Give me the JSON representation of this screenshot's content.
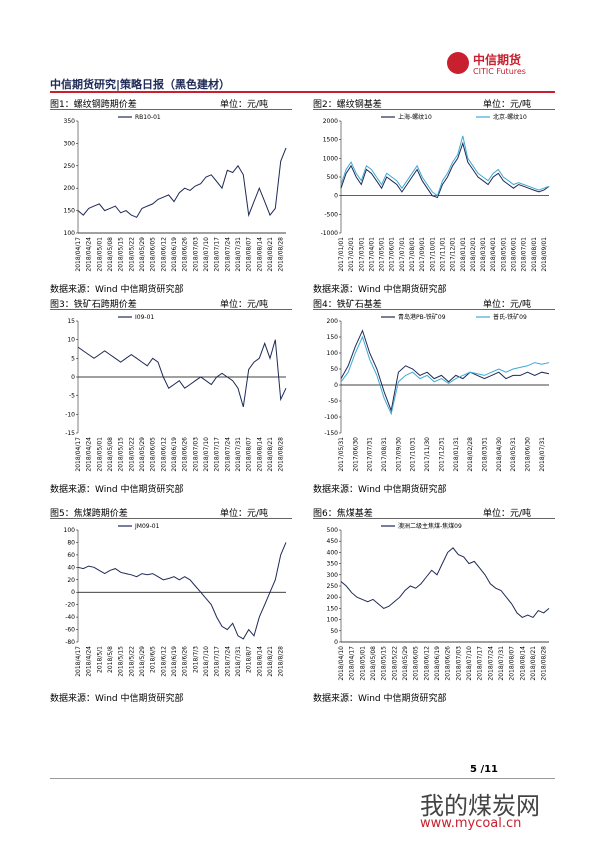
{
  "header": {
    "title": "中信期货研究|策略日报（黑色建材）",
    "logo_cn": "中信期货",
    "logo_en": "CITIC Futures"
  },
  "panels": [
    {
      "title": "图1：螺纹钢跨期价差",
      "unit": "单位：元/吨",
      "source": "数据来源：Wind  中信期货研究部"
    },
    {
      "title": "图2：螺纹钢基差",
      "unit": "单位：元/吨",
      "source": "数据来源：Wind  中信期货研究部"
    },
    {
      "title": "图3：铁矿石跨期价差",
      "unit": "单位：元/吨",
      "source": "数据来源：Wind  中信期货研究部"
    },
    {
      "title": "图4：铁矿石基差",
      "unit": "单位：元/吨",
      "source": "数据来源：Wind  中信期货研究部"
    },
    {
      "title": "图5：焦煤跨期价差",
      "unit": "单位：元/吨",
      "source": "数据来源：Wind  中信期货研究部"
    },
    {
      "title": "图6：焦煤基差",
      "unit": "单位：元/吨",
      "source": "数据来源：Wind  中信期货研究部"
    }
  ],
  "chart_data": [
    {
      "type": "line",
      "categories": [
        "2018/04/17",
        null,
        "2018/04/24",
        null,
        "2018/05/01",
        null,
        "2018/05/08",
        null,
        "2018/05/15",
        null,
        "2018/05/22",
        null,
        "2018/05/29",
        null,
        "2018/06/05",
        null,
        "2018/06/12",
        null,
        "2018/06/19",
        null,
        "2018/06/26",
        null,
        "2018/07/03",
        null,
        "2018/07/10",
        null,
        "2018/07/17",
        null,
        "2018/07/24",
        null,
        "2018/07/31",
        null,
        "2018/08/07",
        null,
        "2018/08/14",
        null,
        "2018/08/21",
        null,
        "2018/08/28",
        null
      ],
      "series": [
        {
          "name": "RB10-01",
          "color": "#1f2a56",
          "values": [
            150,
            140,
            155,
            160,
            165,
            150,
            155,
            160,
            145,
            150,
            140,
            135,
            155,
            160,
            165,
            175,
            180,
            185,
            170,
            190,
            200,
            195,
            205,
            210,
            225,
            230,
            215,
            200,
            240,
            235,
            250,
            230,
            140,
            170,
            200,
            170,
            140,
            155,
            260,
            290
          ]
        }
      ],
      "ylim": [
        100,
        350
      ],
      "yticks": [
        100,
        150,
        200,
        250,
        300,
        350
      ]
    },
    {
      "type": "line",
      "categories": [
        "2017/01/01",
        null,
        "2017/02/01",
        null,
        "2017/03/01",
        null,
        "2017/04/01",
        null,
        "2017/05/01",
        null,
        "2017/06/01",
        null,
        "2017/07/01",
        null,
        "2017/08/01",
        null,
        "2017/09/01",
        null,
        "2017/10/01",
        null,
        "2017/11/01",
        null,
        "2017/12/01",
        null,
        "2018/01/01",
        null,
        "2018/02/01",
        null,
        "2018/03/01",
        null,
        "2018/04/01",
        null,
        "2018/05/01",
        null,
        "2018/06/01",
        null,
        "2018/07/01",
        null,
        "2018/08/01",
        null,
        "2018/09/01",
        null
      ],
      "series": [
        {
          "name": "上海-螺纹10",
          "color": "#1f2a56",
          "values": [
            200,
            600,
            800,
            500,
            300,
            700,
            600,
            400,
            200,
            500,
            400,
            300,
            100,
            300,
            500,
            700,
            400,
            200,
            0,
            -50,
            300,
            500,
            800,
            1000,
            1400,
            900,
            700,
            500,
            400,
            300,
            500,
            600,
            400,
            300,
            200,
            300,
            250,
            200,
            150,
            100,
            150,
            250
          ]
        },
        {
          "name": "北京-螺纹10",
          "color": "#3fa9d6",
          "values": [
            300,
            700,
            900,
            600,
            400,
            800,
            700,
            500,
            300,
            600,
            500,
            400,
            200,
            400,
            600,
            800,
            500,
            300,
            100,
            0,
            400,
            600,
            900,
            1100,
            1600,
            1000,
            800,
            600,
            500,
            400,
            600,
            700,
            500,
            400,
            300,
            350,
            300,
            250,
            200,
            150,
            200,
            250
          ]
        }
      ],
      "ylim": [
        -1000,
        2000
      ],
      "yticks": [
        -1000,
        -500,
        0,
        500,
        1000,
        1500,
        2000
      ]
    },
    {
      "type": "line",
      "categories": [
        "2018/04/17",
        null,
        "2018/04/24",
        null,
        "2018/05/01",
        null,
        "2018/05/08",
        null,
        "2018/05/15",
        null,
        "2018/05/22",
        null,
        "2018/05/29",
        null,
        "2018/06/05",
        null,
        "2018/06/12",
        null,
        "2018/06/19",
        null,
        "2018/06/26",
        null,
        "2018/07/03",
        null,
        "2018/07/10",
        null,
        "2018/07/17",
        null,
        "2018/07/24",
        null,
        "2018/07/31",
        null,
        "2018/08/07",
        null,
        "2018/08/14",
        null,
        "2018/08/21",
        null,
        "2018/08/28",
        null
      ],
      "series": [
        {
          "name": "I09-01",
          "color": "#1f2a56",
          "values": [
            8,
            7,
            6,
            5,
            6,
            7,
            6,
            5,
            4,
            5,
            6,
            5,
            4,
            3,
            5,
            4,
            0,
            -3,
            -2,
            -1,
            -3,
            -2,
            -1,
            0,
            -1,
            -2,
            0,
            1,
            0,
            -1,
            -3,
            -8,
            2,
            4,
            5,
            9,
            5,
            10,
            -6,
            -3
          ]
        }
      ],
      "ylim": [
        -15,
        15
      ],
      "yticks": [
        -15,
        -10,
        -5,
        0,
        5,
        10,
        15
      ]
    },
    {
      "type": "line",
      "categories": [
        "2017/05/31",
        null,
        "2017/06/30",
        null,
        "2017/07/31",
        null,
        "2017/08/31",
        null,
        "2017/09/30",
        null,
        "2017/10/31",
        null,
        "2017/11/30",
        null,
        "2017/12/31",
        null,
        "2018/01/31",
        null,
        "2018/02/28",
        null,
        "2018/03/31",
        null,
        "2018/04/30",
        null,
        "2018/05/31",
        null,
        "2018/06/30",
        null,
        "2018/07/31",
        null
      ],
      "series": [
        {
          "name": "青岛港PB-铁矿09",
          "color": "#1f2a56",
          "values": [
            20,
            60,
            120,
            170,
            100,
            50,
            -20,
            -80,
            40,
            60,
            50,
            30,
            40,
            20,
            30,
            10,
            30,
            20,
            40,
            30,
            20,
            30,
            40,
            20,
            30,
            30,
            40,
            30,
            40,
            35
          ]
        },
        {
          "name": "普氏-铁矿09",
          "color": "#3fa9d6",
          "values": [
            10,
            40,
            100,
            150,
            80,
            30,
            -40,
            -90,
            10,
            30,
            40,
            20,
            30,
            10,
            20,
            5,
            20,
            30,
            40,
            35,
            30,
            40,
            50,
            40,
            50,
            55,
            60,
            70,
            65,
            70
          ]
        }
      ],
      "ylim": [
        -150,
        200
      ],
      "yticks": [
        -150,
        -100,
        -50,
        0,
        50,
        100,
        150,
        200
      ]
    },
    {
      "type": "line",
      "categories": [
        "2018/4/17",
        null,
        "2018/4/24",
        null,
        "2018/5/1",
        null,
        "2018/5/8",
        null,
        "2018/5/15",
        null,
        "2018/5/22",
        null,
        "2018/5/29",
        null,
        "2018/6/5",
        null,
        "2018/6/12",
        null,
        "2018/6/19",
        null,
        "2018/6/26",
        null,
        "2018/7/3",
        null,
        "2018/7/10",
        null,
        "2018/7/17",
        null,
        "2018/7/24",
        null,
        "2018/7/31",
        null,
        "2018/8/7",
        null,
        "2018/8/14",
        null,
        "2018/8/21",
        null,
        "2018/8/28",
        null
      ],
      "series": [
        {
          "name": "JM09-01",
          "color": "#1f2a56",
          "values": [
            40,
            38,
            42,
            40,
            35,
            30,
            35,
            38,
            32,
            30,
            28,
            25,
            30,
            28,
            30,
            25,
            20,
            22,
            25,
            20,
            25,
            20,
            10,
            0,
            -10,
            -20,
            -40,
            -55,
            -60,
            -50,
            -70,
            -75,
            -60,
            -70,
            -40,
            -20,
            0,
            20,
            60,
            80
          ]
        }
      ],
      "ylim": [
        -80,
        100
      ],
      "yticks": [
        -80,
        -60,
        -40,
        -20,
        0,
        20,
        40,
        60,
        80,
        100
      ]
    },
    {
      "type": "line",
      "categories": [
        "2018/04/10",
        null,
        "2018/04/17",
        null,
        "2018/05/01",
        null,
        "2018/05/08",
        null,
        "2018/05/15",
        null,
        "2018/05/22",
        null,
        "2018/05/29",
        null,
        "2018/06/05",
        null,
        "2018/06/12",
        null,
        "2018/06/19",
        null,
        "2018/06/26",
        null,
        "2018/07/03",
        null,
        "2018/07/10",
        null,
        "2018/07/17",
        null,
        "2018/07/24",
        null,
        "2018/07/31",
        null,
        "2018/08/07",
        null,
        "2018/08/14",
        null,
        "2018/08/21",
        null,
        "2018/08/28",
        null
      ],
      "series": [
        {
          "name": "澳洲二级主焦煤-焦煤09",
          "color": "#1f2a56",
          "values": [
            270,
            250,
            220,
            200,
            190,
            180,
            190,
            170,
            150,
            160,
            180,
            200,
            230,
            250,
            240,
            260,
            290,
            320,
            300,
            350,
            400,
            420,
            390,
            380,
            350,
            360,
            330,
            300,
            260,
            240,
            230,
            200,
            170,
            130,
            110,
            120,
            110,
            140,
            130,
            150
          ]
        }
      ],
      "ylim": [
        0,
        500
      ],
      "yticks": [
        0,
        50,
        100,
        150,
        200,
        250,
        300,
        350,
        400,
        450,
        500
      ]
    }
  ],
  "footer": {
    "page": "5 /11",
    "watermark": "我的煤炭网",
    "url": "www.mycoal.cn"
  }
}
